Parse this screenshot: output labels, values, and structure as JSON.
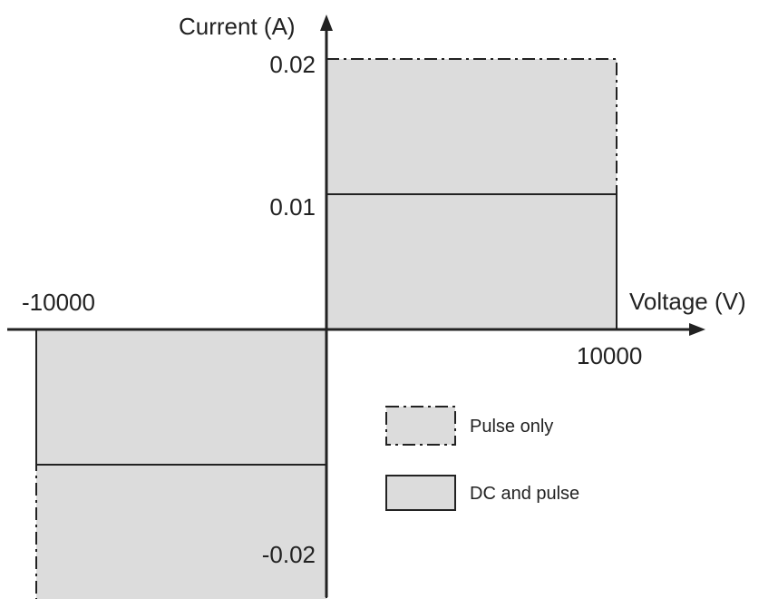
{
  "chart_data": {
    "type": "area",
    "title": "",
    "xlabel": "Voltage (V)",
    "ylabel": "Current (A)",
    "x_ticks": [
      "-10000",
      "10000"
    ],
    "y_ticks": [
      "0.02",
      "0.01",
      "-0.02"
    ],
    "xlim": [
      -10000,
      10000
    ],
    "ylim": [
      -0.02,
      0.02
    ],
    "grid": false,
    "legend_position": "bottom-right",
    "colors": {
      "fill": "#dcdcdc",
      "stroke": "#222222"
    },
    "regions": [
      {
        "name": "Pulse only",
        "line_style": "dash-dot",
        "x_range": [
          0,
          10000
        ],
        "y_range": [
          0,
          0.02
        ]
      },
      {
        "name": "Pulse only",
        "line_style": "dash-dot",
        "x_range": [
          -10000,
          0
        ],
        "y_range": [
          -0.02,
          0
        ]
      },
      {
        "name": "DC and pulse",
        "line_style": "solid",
        "x_range": [
          0,
          10000
        ],
        "y_range": [
          0,
          0.01
        ]
      },
      {
        "name": "DC and pulse",
        "line_style": "solid",
        "x_range": [
          -10000,
          0
        ],
        "y_range": [
          -0.01,
          0
        ]
      }
    ],
    "legend": [
      {
        "label": "Pulse only",
        "line_style": "dash-dot"
      },
      {
        "label": "DC and pulse",
        "line_style": "solid"
      }
    ]
  }
}
